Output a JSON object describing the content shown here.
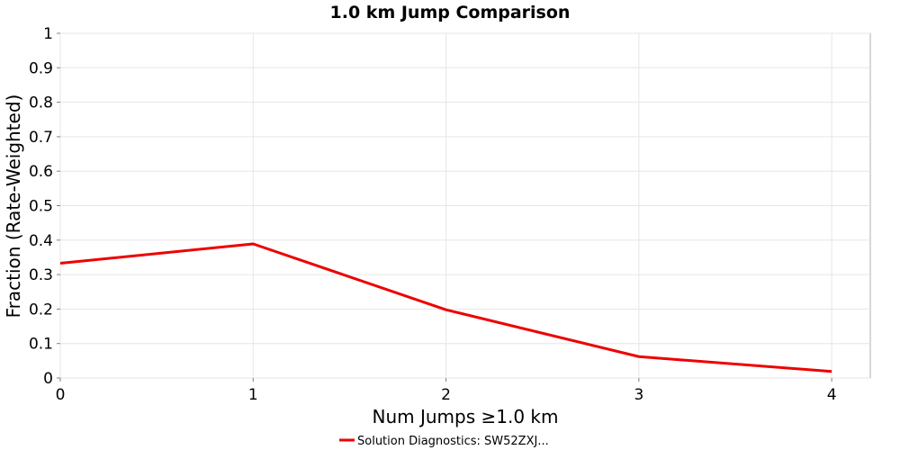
{
  "chart_data": {
    "type": "line",
    "title": "1.0 km Jump Comparison",
    "xlabel": "Num Jumps ≥1.0 km",
    "ylabel": "Fraction (Rate-Weighted)",
    "xlim": [
      0,
      4.2
    ],
    "ylim": [
      0,
      1
    ],
    "x_ticks": [
      0,
      1,
      2,
      3,
      4
    ],
    "y_ticks": [
      0,
      0.1,
      0.2,
      0.3,
      0.4,
      0.5,
      0.6,
      0.7,
      0.8,
      0.9,
      1
    ],
    "grid": true,
    "legend_position": "bottom-center",
    "series": [
      {
        "name": "Solution Diagnostics: SW52ZXJ...",
        "color": "#ee0000",
        "x": [
          0,
          1,
          2,
          3,
          4
        ],
        "y": [
          0.333,
          0.389,
          0.198,
          0.062,
          0.019
        ]
      }
    ]
  }
}
